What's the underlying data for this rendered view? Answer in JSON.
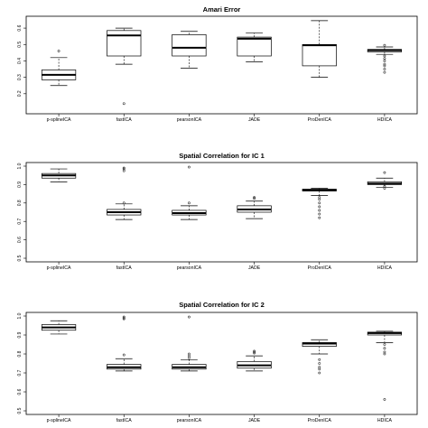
{
  "chart_data": [
    {
      "type": "box",
      "title": "Amari Error",
      "xlabel": "",
      "ylabel": "",
      "ylim": [
        0.1,
        0.65
      ],
      "yticks": [
        0.2,
        0.3,
        0.4,
        0.5,
        0.6
      ],
      "ytick_labels": [
        "0.2",
        "0.3",
        "0.4",
        "0.5",
        "0.6"
      ],
      "categories": [
        "p-splineICA",
        "fastICA",
        "pearsonICA",
        "JADE",
        "ProDenICA",
        "HDICA"
      ],
      "boxes": [
        {
          "whisker_low": 0.25,
          "q1": 0.285,
          "median": 0.315,
          "q3": 0.345,
          "whisker_high": 0.42,
          "outliers": [
            0.46
          ]
        },
        {
          "whisker_low": 0.38,
          "q1": 0.43,
          "median": 0.555,
          "q3": 0.585,
          "whisker_high": 0.6,
          "outliers": [
            0.14
          ]
        },
        {
          "whisker_low": 0.355,
          "q1": 0.43,
          "median": 0.48,
          "q3": 0.56,
          "whisker_high": 0.58,
          "outliers": []
        },
        {
          "whisker_low": 0.395,
          "q1": 0.43,
          "median": 0.535,
          "q3": 0.545,
          "whisker_high": 0.57,
          "outliers": []
        },
        {
          "whisker_low": 0.3,
          "q1": 0.37,
          "median": 0.495,
          "q3": 0.5,
          "whisker_high": 0.645,
          "outliers": []
        },
        {
          "whisker_low": 0.44,
          "q1": 0.455,
          "median": 0.465,
          "q3": 0.47,
          "whisker_high": 0.485,
          "outliers": [
            0.495,
            0.43,
            0.415,
            0.4,
            0.38,
            0.37,
            0.35,
            0.33
          ]
        }
      ]
    },
    {
      "type": "box",
      "title": "Spatial Correlation for IC 1",
      "xlabel": "",
      "ylabel": "",
      "ylim": [
        0.5,
        1.0
      ],
      "yticks": [
        0.5,
        0.6,
        0.7,
        0.8,
        0.9,
        1.0
      ],
      "ytick_labels": [
        "0.5",
        "0.6",
        "0.7",
        "0.8",
        "0.9",
        "1.0"
      ],
      "categories": [
        "p-splineICA",
        "fastICA",
        "pearsonICA",
        "JADE",
        "ProDenICA",
        "HDICA"
      ],
      "boxes": [
        {
          "whisker_low": 0.915,
          "q1": 0.935,
          "median": 0.95,
          "q3": 0.96,
          "whisker_high": 0.985,
          "outliers": []
        },
        {
          "whisker_low": 0.71,
          "q1": 0.735,
          "median": 0.75,
          "q3": 0.765,
          "whisker_high": 0.795,
          "outliers": [
            0.8,
            0.975,
            0.985,
            0.99
          ]
        },
        {
          "whisker_low": 0.71,
          "q1": 0.735,
          "median": 0.745,
          "q3": 0.76,
          "whisker_high": 0.785,
          "outliers": [
            0.8,
            0.995
          ]
        },
        {
          "whisker_low": 0.715,
          "q1": 0.75,
          "median": 0.765,
          "q3": 0.785,
          "whisker_high": 0.81,
          "outliers": [
            0.825,
            0.83
          ]
        },
        {
          "whisker_low": 0.84,
          "q1": 0.865,
          "median": 0.87,
          "q3": 0.875,
          "whisker_high": 0.88,
          "outliers": [
            0.83,
            0.82,
            0.8,
            0.78,
            0.76,
            0.74,
            0.72
          ]
        },
        {
          "whisker_low": 0.885,
          "q1": 0.9,
          "median": 0.905,
          "q3": 0.915,
          "whisker_high": 0.935,
          "outliers": [
            0.965,
            0.89,
            0.88
          ]
        }
      ]
    },
    {
      "type": "box",
      "title": "Spatial Correlation for IC 2",
      "xlabel": "",
      "ylabel": "",
      "ylim": [
        0.5,
        1.0
      ],
      "yticks": [
        0.5,
        0.6,
        0.7,
        0.8,
        0.9,
        1.0
      ],
      "ytick_labels": [
        "0.5",
        "0.6",
        "0.7",
        "0.8",
        "0.9",
        "1.0"
      ],
      "categories": [
        "p-splineICA",
        "fastICA",
        "pearsonICA",
        "JADE",
        "ProDenICA",
        "HDICA"
      ],
      "boxes": [
        {
          "whisker_low": 0.905,
          "q1": 0.925,
          "median": 0.94,
          "q3": 0.955,
          "whisker_high": 0.975,
          "outliers": []
        },
        {
          "whisker_low": 0.71,
          "q1": 0.72,
          "median": 0.73,
          "q3": 0.745,
          "whisker_high": 0.775,
          "outliers": [
            0.795,
            0.985,
            0.99,
            0.995
          ]
        },
        {
          "whisker_low": 0.71,
          "q1": 0.72,
          "median": 0.73,
          "q3": 0.745,
          "whisker_high": 0.77,
          "outliers": [
            0.78,
            0.79,
            0.8,
            0.995
          ]
        },
        {
          "whisker_low": 0.71,
          "q1": 0.725,
          "median": 0.74,
          "q3": 0.76,
          "whisker_high": 0.79,
          "outliers": [
            0.805,
            0.81,
            0.815
          ]
        },
        {
          "whisker_low": 0.8,
          "q1": 0.84,
          "median": 0.855,
          "q3": 0.86,
          "whisker_high": 0.875,
          "outliers": [
            0.77,
            0.75,
            0.73,
            0.72,
            0.7
          ]
        },
        {
          "whisker_low": 0.86,
          "q1": 0.9,
          "median": 0.91,
          "q3": 0.915,
          "whisker_high": 0.92,
          "outliers": [
            0.85,
            0.83,
            0.81,
            0.8,
            0.56
          ]
        }
      ]
    }
  ]
}
